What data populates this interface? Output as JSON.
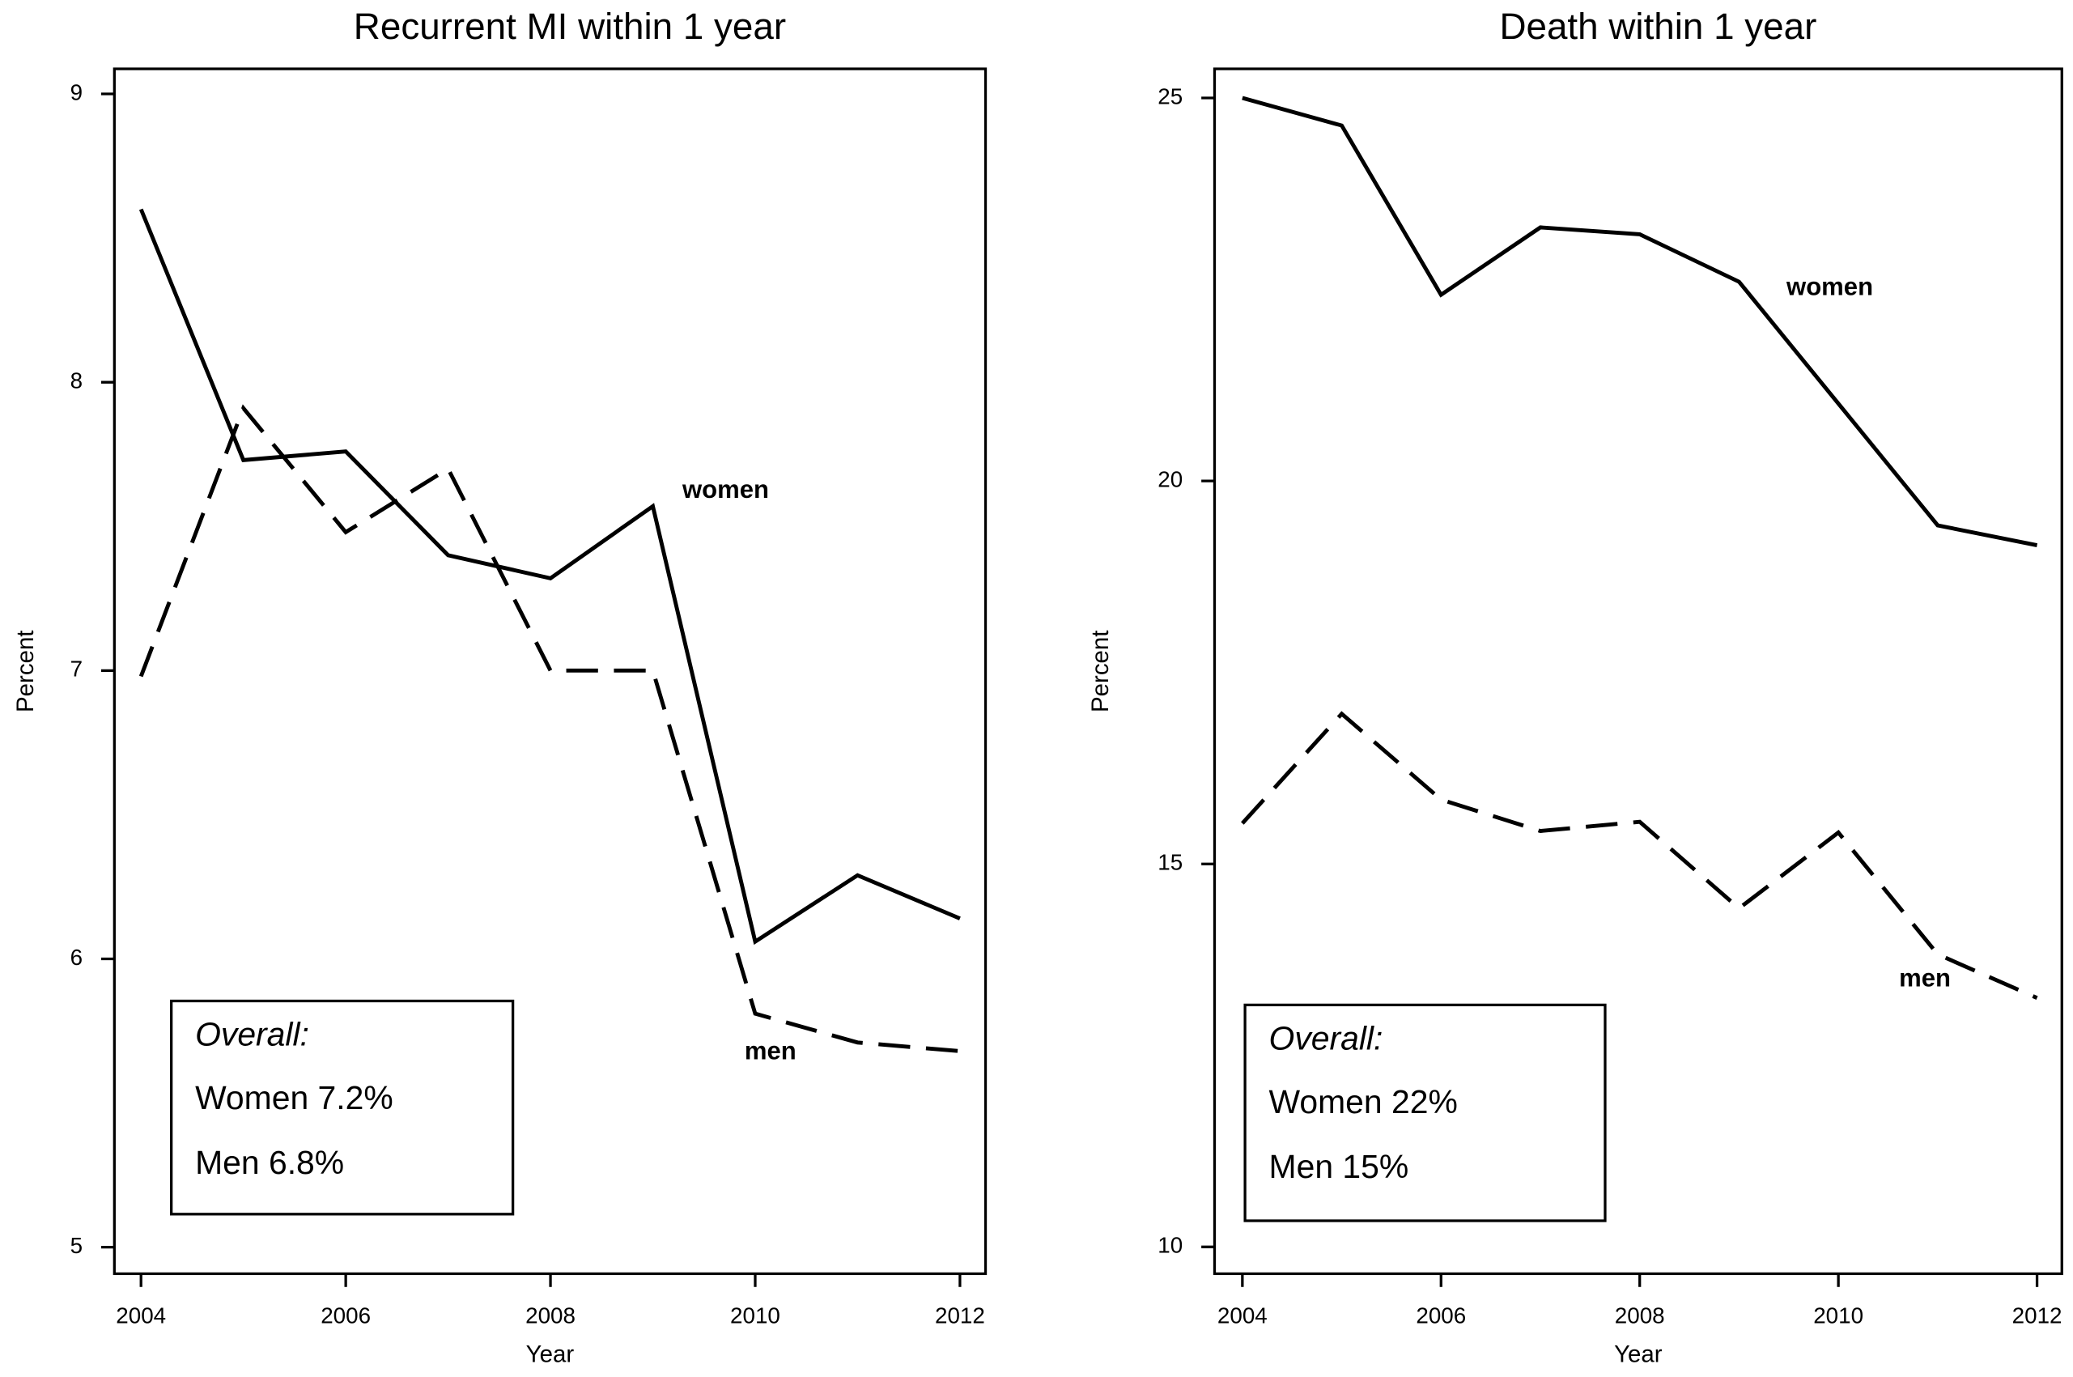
{
  "chart_data": [
    {
      "type": "line",
      "title": "Recurrent MI within 1 year",
      "x_label": "Year",
      "y_label": "Percent",
      "x": [
        2004,
        2005,
        2006,
        2007,
        2008,
        2009,
        2010,
        2011,
        2012
      ],
      "series": [
        {
          "name": "women",
          "color": "#000000",
          "line_style": "solid",
          "values": [
            8.6,
            7.73,
            7.76,
            7.4,
            7.32,
            7.57,
            6.06,
            6.29,
            6.14
          ]
        },
        {
          "name": "men",
          "color": "#000000",
          "line_style": "dashed",
          "values": [
            6.98,
            7.91,
            7.48,
            7.7,
            7.0,
            7.0,
            5.81,
            5.71,
            5.68
          ]
        }
      ],
      "xlim": [
        2003.74,
        2012.25
      ],
      "xticks": [
        2004,
        2006,
        2008,
        2010,
        2012
      ],
      "ylim": [
        4.908,
        9.087
      ],
      "yticks": [
        5,
        6,
        7,
        8,
        9
      ],
      "annotation": {
        "title": "Overall:",
        "lines": [
          "Women 7.2%",
          "Men 6.8%"
        ]
      }
    },
    {
      "type": "line",
      "title": "Death within 1 year",
      "x_label": "Year",
      "y_label": "Percent",
      "x": [
        2004,
        2005,
        2006,
        2007,
        2008,
        2009,
        2010,
        2011,
        2012
      ],
      "series": [
        {
          "name": "women",
          "color": "#000000",
          "line_style": "solid",
          "values": [
            25.0,
            24.64,
            22.43,
            23.31,
            23.22,
            22.6,
            21.01,
            19.42,
            19.16
          ]
        },
        {
          "name": "men",
          "color": "#000000",
          "line_style": "dashed",
          "values": [
            15.53,
            16.96,
            15.84,
            15.43,
            15.55,
            14.42,
            15.41,
            13.82,
            13.25
          ]
        }
      ],
      "xlim": [
        2003.72,
        2012.25
      ],
      "xticks": [
        2004,
        2006,
        2008,
        2010,
        2012
      ],
      "ylim": [
        9.65,
        25.38
      ],
      "yticks": [
        10,
        15,
        20,
        25
      ],
      "annotation": {
        "title": "Overall:",
        "lines": [
          "Women 22%",
          "Men 15%"
        ]
      }
    }
  ]
}
